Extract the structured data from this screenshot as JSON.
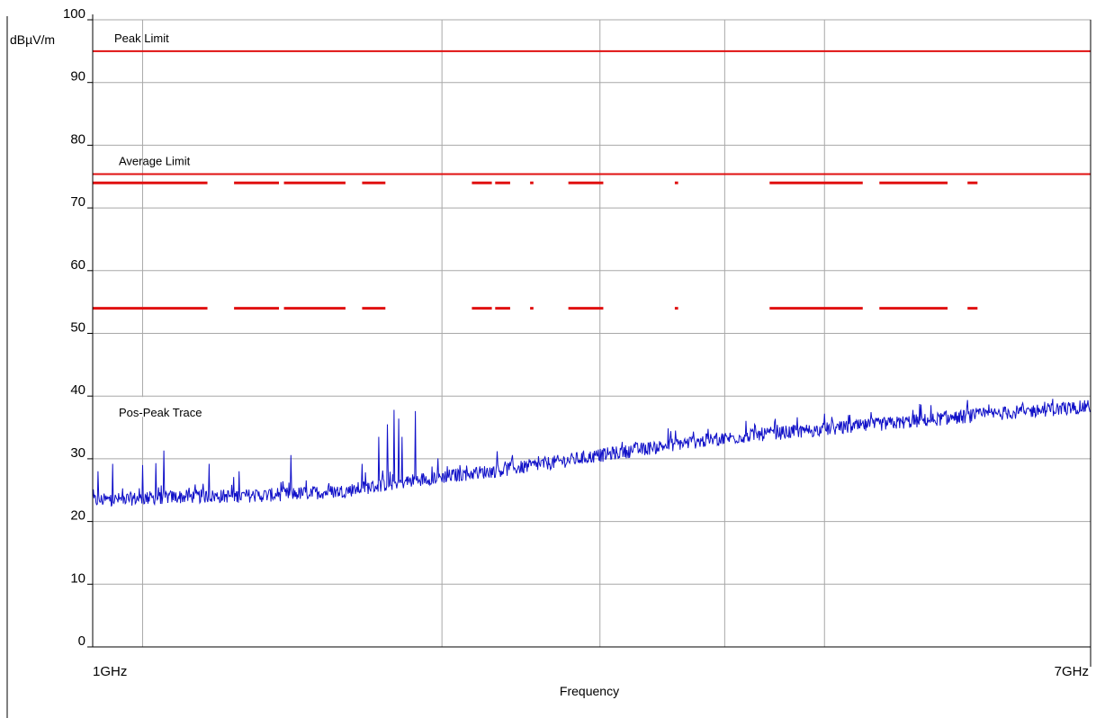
{
  "chart_data": {
    "type": "line",
    "ylabel": "dBµV/m",
    "xlabel": "Frequency",
    "xlim_ghz": [
      1,
      7
    ],
    "ylim": [
      0,
      100
    ],
    "y_ticks": [
      0,
      10,
      20,
      30,
      40,
      50,
      60,
      70,
      80,
      90,
      100
    ],
    "x_tick_labels": [
      "1GHz",
      "7GHz"
    ],
    "x_gridlines_ghz": [
      1.3,
      3.1,
      4.05,
      4.8,
      5.4
    ],
    "grid": true,
    "colors": {
      "limit": "#e01010",
      "trace": "#1010c8",
      "grid": "#a8a8a8",
      "axis": "#000000"
    },
    "limits": [
      {
        "name": "Peak Limit",
        "value": 95
      },
      {
        "name": "Average Limit",
        "value": 75.4
      }
    ],
    "band_marker_levels": [
      74,
      54
    ],
    "band_marker_segments_ghz": [
      [
        1.0,
        1.69
      ],
      [
        1.85,
        2.12
      ],
      [
        2.15,
        2.52
      ],
      [
        2.62,
        2.76
      ],
      [
        3.28,
        3.4
      ],
      [
        3.42,
        3.51
      ],
      [
        3.63,
        3.65
      ],
      [
        3.86,
        4.07
      ],
      [
        4.5,
        4.52
      ],
      [
        5.07,
        5.63
      ],
      [
        5.73,
        6.14
      ],
      [
        6.26,
        6.32
      ]
    ],
    "trace": {
      "name": "Pos-Peak Trace",
      "x_ghz": [
        1.0,
        1.5,
        2.0,
        2.5,
        3.0,
        3.5,
        4.0,
        4.5,
        5.0,
        5.5,
        6.0,
        6.5,
        7.0
      ],
      "y": [
        23.0,
        23.6,
        23.8,
        24.5,
        26.5,
        28.0,
        30.0,
        32.0,
        33.5,
        34.6,
        35.8,
        37.0,
        38.0
      ],
      "spikes": [
        {
          "x": 1.03,
          "y": 28.0
        },
        {
          "x": 1.12,
          "y": 29.2
        },
        {
          "x": 1.3,
          "y": 29.0
        },
        {
          "x": 1.38,
          "y": 29.3
        },
        {
          "x": 1.43,
          "y": 31.3
        },
        {
          "x": 1.7,
          "y": 29.2
        },
        {
          "x": 1.88,
          "y": 28.0
        },
        {
          "x": 2.19,
          "y": 30.6
        },
        {
          "x": 2.62,
          "y": 29.2
        },
        {
          "x": 2.72,
          "y": 33.5
        },
        {
          "x": 2.77,
          "y": 35.5
        },
        {
          "x": 2.81,
          "y": 37.8
        },
        {
          "x": 2.84,
          "y": 36.4
        },
        {
          "x": 2.86,
          "y": 33.5
        },
        {
          "x": 2.94,
          "y": 37.6
        },
        {
          "x": 3.43,
          "y": 31.2
        },
        {
          "x": 3.68,
          "y": 30.4
        },
        {
          "x": 4.98,
          "y": 35.5
        },
        {
          "x": 5.34,
          "y": 35.2
        }
      ]
    }
  }
}
